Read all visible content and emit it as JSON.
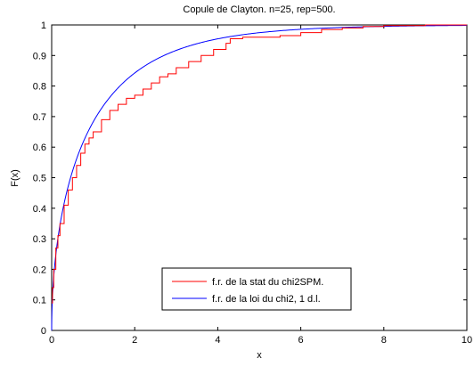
{
  "chart_data": {
    "type": "line",
    "title": "Copule de Clayton. n=25, rep=500.",
    "xlabel": "x",
    "ylabel": "F(x)",
    "xlim": [
      0,
      10
    ],
    "ylim": [
      0,
      1
    ],
    "x_ticks": [
      "0",
      "2",
      "4",
      "6",
      "8",
      "10"
    ],
    "y_ticks": [
      "0",
      "0.1",
      "0.2",
      "0.3",
      "0.4",
      "0.5",
      "0.6",
      "0.7",
      "0.8",
      "0.9",
      "1"
    ],
    "grid": false,
    "legend_position": "lower-center",
    "series": [
      {
        "name": "f.r. de la stat du chi2SPM.",
        "color": "#ff0000",
        "style": "step",
        "x": [
          0,
          0.02,
          0.05,
          0.1,
          0.15,
          0.2,
          0.3,
          0.4,
          0.5,
          0.6,
          0.7,
          0.8,
          0.9,
          1.0,
          1.2,
          1.4,
          1.6,
          1.8,
          2.0,
          2.2,
          2.4,
          2.6,
          2.8,
          3.0,
          3.3,
          3.6,
          3.9,
          4.2,
          4.3,
          4.6,
          5.0,
          5.5,
          6.0,
          6.5,
          7.0,
          7.5,
          8.0,
          9.0,
          10.0
        ],
        "y": [
          0.09,
          0.14,
          0.2,
          0.27,
          0.31,
          0.35,
          0.41,
          0.46,
          0.5,
          0.54,
          0.58,
          0.61,
          0.63,
          0.65,
          0.69,
          0.72,
          0.74,
          0.76,
          0.77,
          0.79,
          0.81,
          0.83,
          0.84,
          0.86,
          0.88,
          0.9,
          0.92,
          0.94,
          0.955,
          0.96,
          0.96,
          0.965,
          0.975,
          0.985,
          0.99,
          0.995,
          0.998,
          1.0,
          1.0
        ]
      },
      {
        "name": "f.r. de la loi du chi2, 1 d.l.",
        "color": "#0000ff",
        "style": "smooth"
      }
    ]
  }
}
